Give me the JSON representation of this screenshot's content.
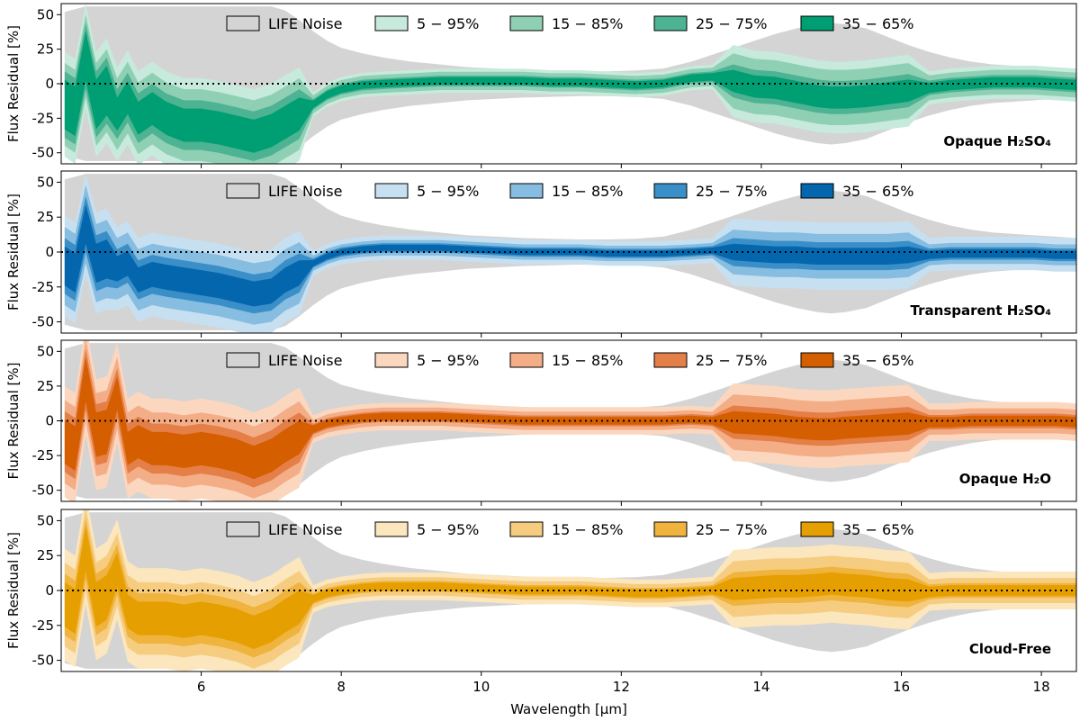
{
  "chart_data": {
    "type": "area",
    "xlabel": "Wavelength [μm]",
    "ylabel": "Flux Residual [%]",
    "xlim": [
      4.0,
      18.5
    ],
    "ylim": [
      -58,
      58
    ],
    "x_ticks": [
      6,
      8,
      10,
      12,
      14,
      16,
      18
    ],
    "y_ticks": [
      -50,
      -25,
      0,
      25,
      50
    ],
    "grid": false,
    "legend_placement": "top",
    "legend_entries": [
      "LIFE Noise",
      "5 − 95%",
      "15 − 85%",
      "25 − 75%",
      "35 − 65%"
    ],
    "noise_color": "#d4d4d4",
    "reference_line_y": 0,
    "x": [
      4.05,
      4.2,
      4.35,
      4.5,
      4.65,
      4.8,
      4.95,
      5.1,
      5.3,
      5.5,
      5.75,
      6.0,
      6.25,
      6.5,
      6.75,
      7.0,
      7.2,
      7.4,
      7.6,
      7.8,
      8.0,
      8.3,
      8.6,
      9.0,
      9.4,
      9.8,
      10.2,
      10.6,
      11.0,
      11.4,
      11.8,
      12.2,
      12.6,
      13.0,
      13.3,
      13.6,
      13.9,
      14.2,
      14.5,
      14.8,
      15.0,
      15.2,
      15.5,
      15.8,
      16.1,
      16.4,
      16.7,
      17.0,
      17.3,
      17.6,
      17.9,
      18.2,
      18.5
    ],
    "noise_half_width": [
      52,
      54,
      56,
      56,
      56,
      56,
      56,
      56,
      56,
      56,
      56,
      56,
      56,
      56,
      56,
      56,
      53,
      46,
      38,
      31,
      26,
      22,
      19,
      16,
      14,
      12,
      11,
      10,
      9.5,
      9,
      9,
      9.5,
      11,
      16,
      21,
      26,
      31,
      36,
      40,
      43,
      44,
      43,
      40,
      34,
      28,
      23,
      19,
      16,
      14,
      13,
      12,
      11,
      10
    ],
    "panels": [
      {
        "label": "Opaque H₂SO₄",
        "colors": [
          "#c7eadc",
          "#8fd0b5",
          "#4db392",
          "#009e73"
        ],
        "median": [
          -15,
          -20,
          20,
          -15,
          -5,
          -22,
          -10,
          -25,
          -18,
          -25,
          -30,
          -30,
          -32,
          -35,
          -38,
          -34,
          -28,
          -22,
          -15,
          -8,
          -4,
          -1,
          0,
          1,
          2,
          2,
          2,
          2,
          1,
          1,
          0,
          -1,
          0,
          4,
          5,
          2,
          -2,
          -3,
          -6,
          -9,
          -10,
          -10,
          -9,
          -7,
          -5,
          -3,
          -1,
          0,
          1,
          1,
          1,
          0,
          -1
        ],
        "half_widths": [
          [
            38,
            34,
            26,
            16
          ],
          [
            30,
            26,
            20,
            12
          ],
          [
            24,
            18,
            12,
            7
          ],
          [
            18,
            12,
            8,
            5
          ]
        ]
      },
      {
        "label": "Transparent H₂SO₄",
        "colors": [
          "#c6e0f2",
          "#86bde0",
          "#3a8fc8",
          "#0466ad"
        ],
        "median": [
          -10,
          -15,
          20,
          -8,
          -5,
          -12,
          -8,
          -20,
          -16,
          -18,
          -20,
          -22,
          -24,
          -27,
          -30,
          -28,
          -20,
          -15,
          -8,
          -3,
          0,
          2,
          3,
          3,
          3,
          2,
          1,
          0,
          0,
          0,
          -1,
          -1,
          -1,
          0,
          1,
          0,
          -1,
          -2,
          -2,
          -3,
          -3,
          -3,
          -3,
          -3,
          -2,
          -2,
          -1,
          -1,
          -1,
          -1,
          -1,
          -2,
          -2
        ],
        "half_widths": [
          [
            36,
            30,
            24,
            16
          ],
          [
            28,
            22,
            16,
            10
          ],
          [
            20,
            14,
            10,
            6
          ],
          [
            14,
            9,
            6,
            4
          ]
        ]
      },
      {
        "label": "Opaque H₂O",
        "colors": [
          "#fbd7c0",
          "#f4ae87",
          "#e57f48",
          "#d55e00"
        ],
        "median": [
          -15,
          -20,
          30,
          -10,
          -8,
          20,
          -20,
          -15,
          -20,
          -20,
          -22,
          -20,
          -22,
          -25,
          -30,
          -25,
          -18,
          -12,
          -6,
          -2,
          0,
          2,
          3,
          3,
          3,
          2,
          1,
          0,
          0,
          0,
          0,
          0,
          0,
          1,
          0,
          -1,
          -2,
          -3,
          -5,
          -6,
          -6,
          -5,
          -4,
          -3,
          -2,
          -1,
          -1,
          0,
          0,
          0,
          0,
          0,
          -1
        ],
        "half_widths": [
          [
            40,
            36,
            28,
            18
          ],
          [
            30,
            26,
            20,
            12
          ],
          [
            22,
            18,
            12,
            7
          ],
          [
            16,
            12,
            8,
            5
          ]
        ]
      },
      {
        "label": "Cloud-Free",
        "colors": [
          "#fbe6bd",
          "#f6cd80",
          "#efb33e",
          "#e69f00"
        ],
        "median": [
          -10,
          -15,
          30,
          -10,
          -5,
          15,
          -15,
          -20,
          -20,
          -20,
          -22,
          -20,
          -22,
          -25,
          -30,
          -25,
          -18,
          -12,
          -6,
          -2,
          0,
          2,
          3,
          3,
          3,
          2,
          1,
          0,
          0,
          0,
          -1,
          -2,
          -2,
          -1,
          0,
          1,
          2,
          3,
          3,
          4,
          5,
          4,
          3,
          1,
          0,
          -1,
          0,
          0,
          0,
          0,
          0,
          0,
          0
        ],
        "half_widths": [
          [
            40,
            36,
            28,
            18
          ],
          [
            30,
            26,
            20,
            12
          ],
          [
            22,
            18,
            12,
            7
          ],
          [
            16,
            12,
            8,
            5
          ]
        ]
      }
    ]
  }
}
